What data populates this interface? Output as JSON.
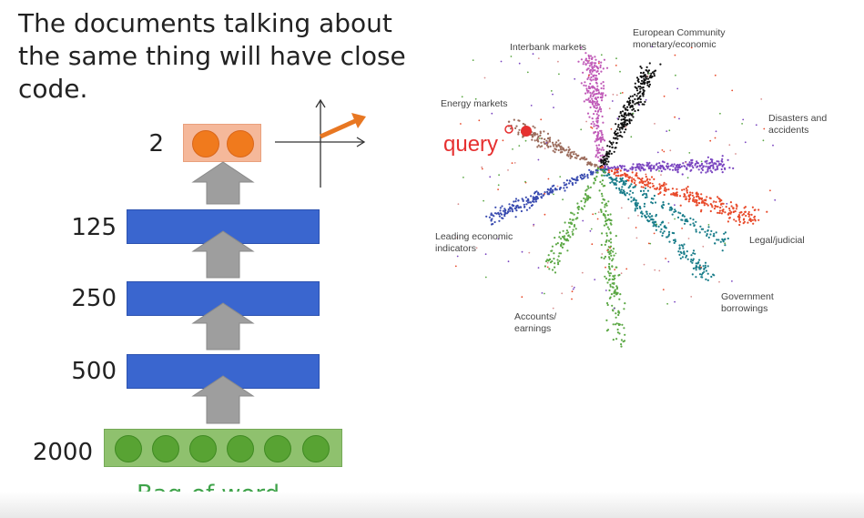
{
  "title": "The documents talking about the same thing will have close code.",
  "encoder": {
    "input_label": "Bag-of-word",
    "layers": [
      {
        "size": "2000"
      },
      {
        "size": "500"
      },
      {
        "size": "250"
      },
      {
        "size": "125"
      },
      {
        "size": "2"
      }
    ]
  },
  "scatter": {
    "query_label": "query",
    "clusters": [
      {
        "label": "Interbank markets",
        "color": "#c05ab8"
      },
      {
        "label": "European Community monetary/economic",
        "color": "#111111"
      },
      {
        "label": "Energy markets",
        "color": "#9a6a5a"
      },
      {
        "label": "Disasters and accidents",
        "color": "#d99090"
      },
      {
        "label": "Leading economic indicators",
        "color": "#3a4cb0"
      },
      {
        "label": "Legal/judicial",
        "color": "#1a7d8a"
      },
      {
        "label": "Government borrowings",
        "color": "#1a7d8a"
      },
      {
        "label": "Accounts/ earnings",
        "color": "#5ca845"
      }
    ],
    "extra_colors": {
      "purple": "#7a45c0",
      "red": "#e84a2a"
    }
  }
}
